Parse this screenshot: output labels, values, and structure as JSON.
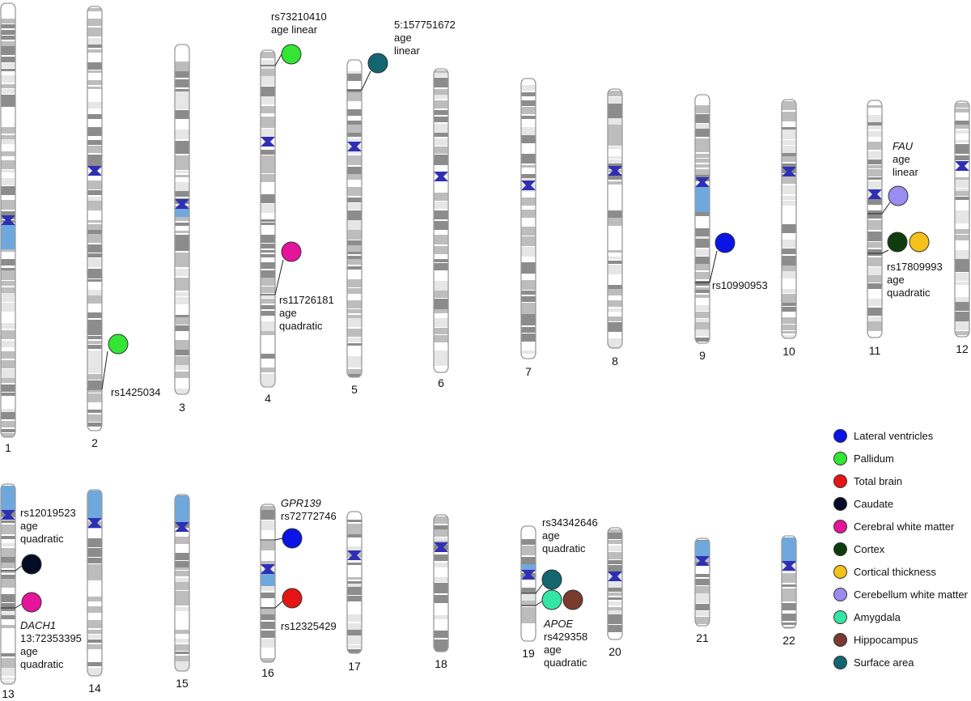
{
  "chromosomes": [
    {
      "label": "1"
    },
    {
      "label": "2"
    },
    {
      "label": "3"
    },
    {
      "label": "4"
    },
    {
      "label": "5"
    },
    {
      "label": "6"
    },
    {
      "label": "7"
    },
    {
      "label": "8"
    },
    {
      "label": "9"
    },
    {
      "label": "10"
    },
    {
      "label": "11"
    },
    {
      "label": "12"
    },
    {
      "label": "13"
    },
    {
      "label": "14"
    },
    {
      "label": "15"
    },
    {
      "label": "16"
    },
    {
      "label": "17"
    },
    {
      "label": "18"
    },
    {
      "label": "19"
    },
    {
      "label": "20"
    },
    {
      "label": "21"
    },
    {
      "label": "22"
    }
  ],
  "annotations": [
    {
      "chromosome": "2",
      "lines": [
        "rs1425034"
      ],
      "italic_first": false,
      "markers": [
        "pallidum"
      ]
    },
    {
      "chromosome": "4",
      "lines": [
        "rs73210410",
        "age linear"
      ],
      "italic_first": false,
      "markers": [
        "pallidum"
      ]
    },
    {
      "chromosome": "4",
      "lines": [
        "rs11726181",
        "age",
        "quadratic"
      ],
      "italic_first": false,
      "markers": [
        "cerebral_white_matter"
      ]
    },
    {
      "chromosome": "5",
      "lines": [
        "5:157751672",
        "age",
        "linear"
      ],
      "italic_first": false,
      "markers": [
        "surface_area"
      ]
    },
    {
      "chromosome": "9",
      "lines": [
        "rs10990953"
      ],
      "italic_first": false,
      "markers": [
        "lateral_ventricles"
      ]
    },
    {
      "chromosome": "11",
      "lines": [
        "FAU",
        "age",
        "linear"
      ],
      "italic_first": true,
      "markers": [
        "cerebellum_white_matter"
      ]
    },
    {
      "chromosome": "11",
      "lines": [
        "rs17809993",
        "age",
        "quadratic"
      ],
      "italic_first": false,
      "markers": [
        "cortex",
        "cortical_thickness"
      ]
    },
    {
      "chromosome": "13",
      "lines": [
        "rs12019523",
        "age",
        "quadratic"
      ],
      "italic_first": false,
      "markers": [
        "caudate"
      ]
    },
    {
      "chromosome": "13",
      "lines": [
        "DACH1",
        "13:72353395",
        "age",
        "quadratic"
      ],
      "italic_first": true,
      "markers": [
        "cerebral_white_matter"
      ]
    },
    {
      "chromosome": "16",
      "lines": [
        "GPR139",
        "rs72772746"
      ],
      "italic_first": true,
      "markers": [
        "lateral_ventricles"
      ]
    },
    {
      "chromosome": "16",
      "lines": [
        "rs12325429"
      ],
      "italic_first": false,
      "markers": [
        "total_brain"
      ]
    },
    {
      "chromosome": "19",
      "lines": [
        "rs34342646",
        "age",
        "quadratic"
      ],
      "italic_first": false,
      "markers": [
        "surface_area"
      ]
    },
    {
      "chromosome": "19",
      "lines": [
        "APOE",
        "rs429358",
        "age",
        "quadratic"
      ],
      "italic_first": true,
      "markers": [
        "amygdala",
        "hippocampus"
      ]
    }
  ],
  "legend": [
    {
      "key": "lateral_ventricles",
      "label": "Lateral ventricles",
      "color": "#0a14e6"
    },
    {
      "key": "pallidum",
      "label": "Pallidum",
      "color": "#33e633"
    },
    {
      "key": "total_brain",
      "label": "Total brain",
      "color": "#e61414"
    },
    {
      "key": "caudate",
      "label": "Caudate",
      "color": "#050a28"
    },
    {
      "key": "cerebral_white_matter",
      "label": "Cerebral white matter",
      "color": "#e6149a"
    },
    {
      "key": "cortex",
      "label": "Cortex",
      "color": "#0f3c0f"
    },
    {
      "key": "cortical_thickness",
      "label": "Cortical thickness",
      "color": "#f5c21a"
    },
    {
      "key": "cerebellum_white_matter",
      "label": "Cerebellum white matter",
      "color": "#9a8cf0"
    },
    {
      "key": "amygdala",
      "label": "Amygdala",
      "color": "#33e6a6"
    },
    {
      "key": "hippocampus",
      "label": "Hippocampus",
      "color": "#7a3a2e"
    },
    {
      "key": "surface_area",
      "label": "Surface area",
      "color": "#136670"
    }
  ],
  "colors": {
    "centromere": "#2f2fb4",
    "heterochromatin": "#6fa8dc",
    "band_dark": "#8c8c8c",
    "band_mid": "#bdbdbd",
    "band_light": "#e6e6e6",
    "outline": "#9a9a9a"
  }
}
